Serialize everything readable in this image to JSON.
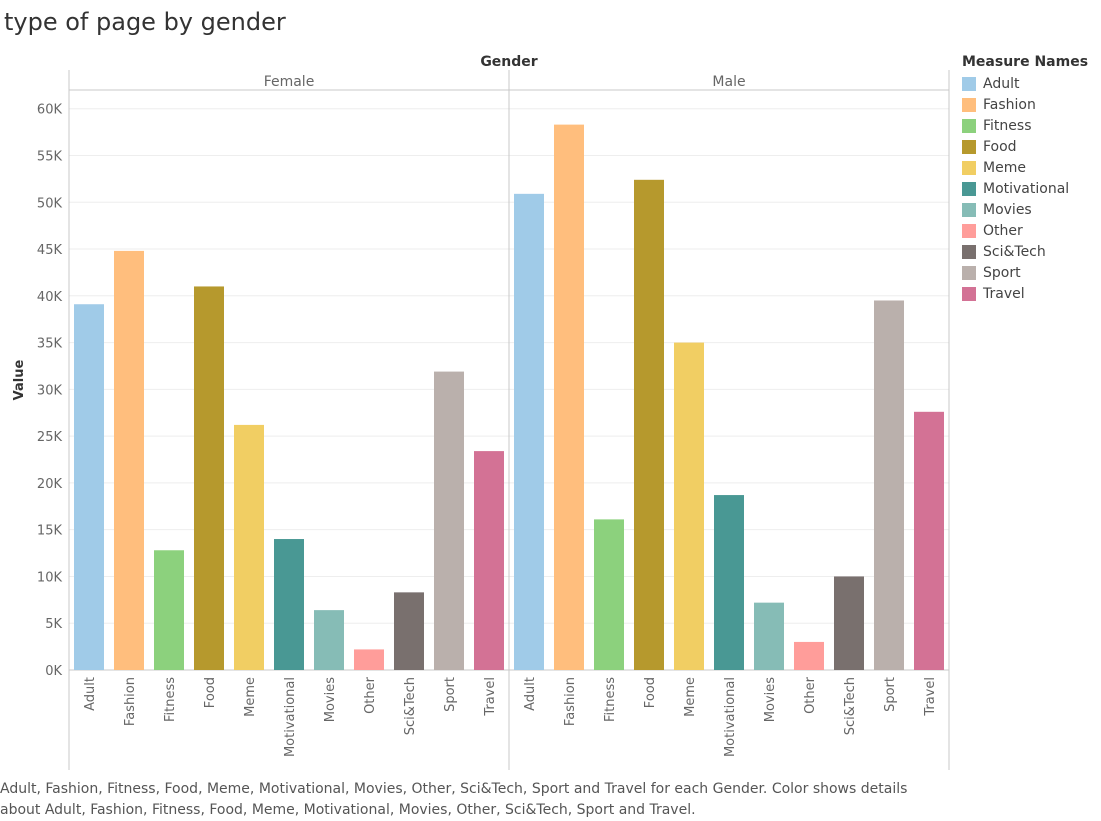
{
  "title": "type of page by gender",
  "caption": "Adult, Fashion, Fitness, Food, Meme, Motivational, Movies, Other, Sci&Tech, Sport and Travel for each Gender.  Color shows details about Adult, Fashion, Fitness, Food, Meme, Motivational, Movies, Other, Sci&Tech, Sport and Travel.",
  "legend": {
    "title": "Measure Names",
    "placement": "right"
  },
  "colors": {
    "Adult": "#A0CBE8",
    "Fashion": "#FFBE7D",
    "Fitness": "#8CD17D",
    "Food": "#B6992D",
    "Meme": "#F1CE63",
    "Motivational": "#499894",
    "Movies": "#86BCB6",
    "Other": "#FF9D9A",
    "Sci&Tech": "#79706E",
    "Sport": "#BAB0AC",
    "Travel": "#D37295"
  },
  "chart_data": {
    "type": "bar",
    "column_header": "Gender",
    "ylabel": "Value",
    "ylim": [
      0,
      62000
    ],
    "yticks": [
      0,
      5000,
      10000,
      15000,
      20000,
      25000,
      30000,
      35000,
      40000,
      45000,
      50000,
      55000,
      60000
    ],
    "ytick_labels": [
      "0K",
      "5K",
      "10K",
      "15K",
      "20K",
      "25K",
      "30K",
      "35K",
      "40K",
      "45K",
      "50K",
      "55K",
      "60K"
    ],
    "grid": true,
    "categories": [
      "Adult",
      "Fashion",
      "Fitness",
      "Food",
      "Meme",
      "Motivational",
      "Movies",
      "Other",
      "Sci&Tech",
      "Sport",
      "Travel"
    ],
    "panels": [
      {
        "name": "Female",
        "values": [
          39100,
          44800,
          12800,
          41000,
          26200,
          14000,
          6400,
          2200,
          8300,
          31900,
          23400
        ]
      },
      {
        "name": "Male",
        "values": [
          50900,
          58300,
          16100,
          52400,
          35000,
          18700,
          7200,
          3000,
          10000,
          39500,
          27600
        ]
      }
    ]
  }
}
